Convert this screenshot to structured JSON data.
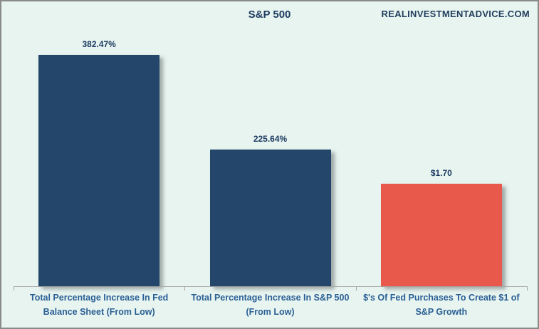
{
  "header": {
    "title": "S&P 500",
    "watermark": "REALINVESTMENTADVICE.COM"
  },
  "chart_data": {
    "type": "bar",
    "title": "S&P 500",
    "categories": [
      "Total Percentage Increase In Fed Balance Sheet (From Low)",
      "Total Percentage Increase In S&P 500 (From Low)",
      "$'s Of Fed Purchases To Create $1 of S&P Growth"
    ],
    "values": [
      382.47,
      225.64,
      1.7
    ],
    "value_labels": [
      "382.47%",
      "225.64%",
      "$1.70"
    ],
    "plot_values": [
      382.47,
      225.64,
      170.0
    ],
    "bar_colors": [
      "#24466b",
      "#24466b",
      "#e8594b"
    ],
    "ylim": [
      0,
      382.47
    ],
    "xlabel": "",
    "ylabel": "",
    "grid": false,
    "legend": "none",
    "axis_visible": "x-baseline-only"
  },
  "colors": {
    "background": "#e7f4f0",
    "border": "#8a8a8a",
    "navy_bar": "#24466b",
    "red_bar": "#e8594b",
    "axis": "#a6a6a6",
    "value_text": "#1f3c61",
    "category_text": "#2b6094"
  }
}
